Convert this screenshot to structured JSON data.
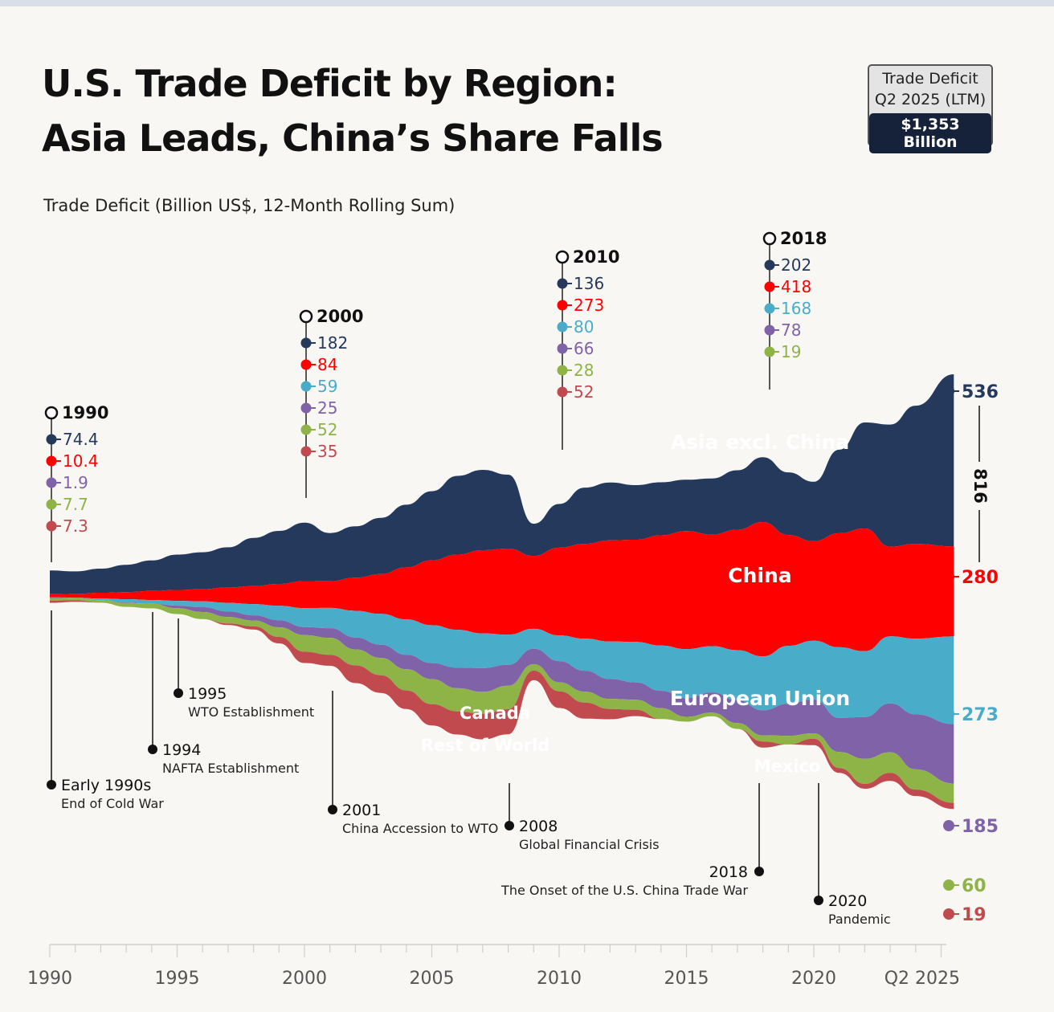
{
  "header": {
    "title_line1": "U.S. Trade Deficit by Region:",
    "title_line2": "Asia Leads, China’s Share Falls",
    "subtitle": "Trade Deficit (Billion US$, 12-Month Rolling Sum)"
  },
  "badge": {
    "line1": "Trade Deficit",
    "line2": "Q2 2025 (LTM)",
    "value": "$1,353 Billion"
  },
  "chart_data": {
    "type": "area",
    "stacking": "streamgraph",
    "ylabel": "Trade Deficit (Billion US$, 12-Month Rolling Sum)",
    "x": [
      1990,
      1991,
      1992,
      1993,
      1994,
      1995,
      1996,
      1997,
      1998,
      1999,
      2000,
      2001,
      2002,
      2003,
      2004,
      2005,
      2006,
      2007,
      2008,
      2009,
      2010,
      2011,
      2012,
      2013,
      2014,
      2015,
      2016,
      2017,
      2018,
      2019,
      2020,
      2021,
      2022,
      2023,
      2024,
      2025
    ],
    "series": [
      {
        "name": "Asia excl. China",
        "color": "#24395c",
        "values": [
          74,
          70,
          75,
          85,
          95,
          110,
          115,
          125,
          150,
          165,
          182,
          150,
          160,
          175,
          195,
          215,
          245,
          250,
          230,
          100,
          136,
          175,
          180,
          170,
          165,
          160,
          175,
          185,
          202,
          195,
          185,
          260,
          330,
          380,
          430,
          536
        ]
      },
      {
        "name": "China",
        "color": "#ff0000",
        "values": [
          10,
          12,
          18,
          22,
          28,
          34,
          38,
          48,
          56,
          68,
          84,
          83,
          103,
          124,
          162,
          202,
          234,
          259,
          268,
          227,
          273,
          295,
          315,
          318,
          343,
          367,
          347,
          375,
          418,
          345,
          310,
          355,
          382,
          279,
          295,
          280
        ]
      },
      {
        "name": "European Union",
        "color": "#49adc9",
        "values": [
          0,
          0,
          5,
          10,
          12,
          15,
          18,
          27,
          35,
          45,
          59,
          63,
          83,
          96,
          110,
          118,
          118,
          108,
          94,
          62,
          80,
          100,
          117,
          126,
          141,
          153,
          144,
          156,
          168,
          180,
          183,
          220,
          205,
          209,
          236,
          273
        ]
      },
      {
        "name": "Mexico",
        "color": "#8062a9",
        "values": [
          2,
          0,
          0,
          2,
          0,
          8,
          15,
          17,
          16,
          22,
          25,
          30,
          37,
          41,
          45,
          50,
          64,
          74,
          65,
          48,
          66,
          65,
          62,
          54,
          54,
          58,
          63,
          71,
          78,
          100,
          105,
          106,
          130,
          152,
          171,
          185
        ]
      },
      {
        "name": "Canada",
        "color": "#8eb347",
        "values": [
          8,
          8,
          8,
          12,
          14,
          18,
          22,
          20,
          18,
          30,
          52,
          53,
          50,
          54,
          66,
          78,
          72,
          68,
          73,
          20,
          28,
          34,
          31,
          31,
          34,
          15,
          11,
          18,
          19,
          27,
          17,
          50,
          78,
          64,
          63,
          60
        ]
      },
      {
        "name": "Rest of World",
        "color": "#c14a4f",
        "values": [
          7,
          5,
          0,
          0,
          0,
          0,
          0,
          5,
          10,
          20,
          35,
          34,
          55,
          55,
          58,
          66,
          72,
          80,
          78,
          30,
          52,
          50,
          32,
          20,
          0,
          0,
          0,
          0,
          19,
          0,
          20,
          15,
          15,
          25,
          20,
          19
        ]
      }
    ],
    "xticks": [
      "1990",
      "1995",
      "2000",
      "2005",
      "2010",
      "2015",
      "2020",
      "Q2 2025"
    ],
    "callouts": [
      {
        "year": "1990",
        "values": [
          "74.4",
          "10.4",
          "1.9",
          "7.7",
          "7.3"
        ],
        "colors": [
          "#24395c",
          "#ff0000",
          "#8062a9",
          "#8eb347",
          "#c14a4f"
        ]
      },
      {
        "year": "2000",
        "values": [
          "182",
          "84",
          "59",
          "25",
          "52",
          "35"
        ],
        "colors": [
          "#24395c",
          "#ff0000",
          "#49adc9",
          "#8062a9",
          "#8eb347",
          "#c14a4f"
        ]
      },
      {
        "year": "2010",
        "values": [
          "136",
          "273",
          "80",
          "66",
          "28",
          "52"
        ],
        "colors": [
          "#24395c",
          "#ff0000",
          "#49adc9",
          "#8062a9",
          "#8eb347",
          "#c14a4f"
        ]
      },
      {
        "year": "2018",
        "values": [
          "202",
          "418",
          "168",
          "78",
          "19"
        ],
        "colors": [
          "#24395c",
          "#ff0000",
          "#49adc9",
          "#8062a9",
          "#8eb347"
        ]
      }
    ],
    "end_labels": [
      {
        "value": "536",
        "color": "#24395c"
      },
      {
        "value": "280",
        "color": "#ff0000"
      },
      {
        "value": "273",
        "color": "#49adc9"
      },
      {
        "value": "185",
        "color": "#8062a9"
      },
      {
        "value": "60",
        "color": "#8eb347"
      },
      {
        "value": "19",
        "color": "#c14a4f"
      }
    ],
    "bracket_label": "816",
    "annotations": [
      {
        "year": 1990,
        "label": "Early 1990s",
        "sub": "End of Cold War"
      },
      {
        "year": 1994,
        "label": "1994",
        "sub": "NAFTA Establishment"
      },
      {
        "year": 1995,
        "label": "1995",
        "sub": "WTO Establishment"
      },
      {
        "year": 2001,
        "label": "2001",
        "sub": "China Accession to WTO"
      },
      {
        "year": 2008,
        "label": "2008",
        "sub": "Global Financial Crisis"
      },
      {
        "year": 2018,
        "label": "2018",
        "sub": "The Onset of the U.S. China Trade War"
      },
      {
        "year": 2020,
        "label": "2020",
        "sub": "Pandemic"
      }
    ]
  }
}
